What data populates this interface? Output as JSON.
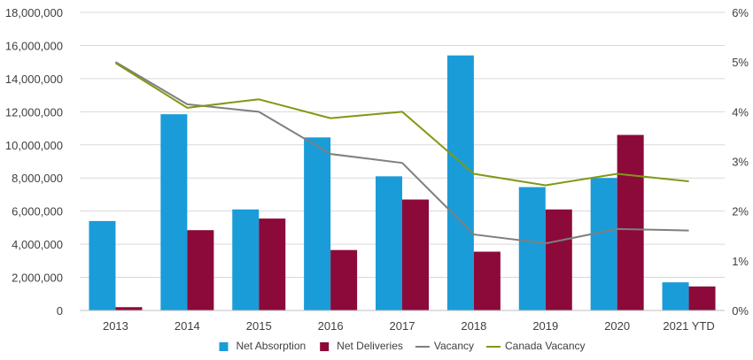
{
  "chart_data": {
    "type": "bar",
    "categories": [
      "2013",
      "2014",
      "2015",
      "2016",
      "2017",
      "2018",
      "2019",
      "2020",
      "2021 YTD"
    ],
    "series": [
      {
        "name": "Net Absorption",
        "kind": "bar",
        "axis": "left",
        "color": "#1a9cd8",
        "values": [
          5400000,
          11850000,
          6100000,
          10450000,
          8100000,
          15400000,
          7450000,
          8000000,
          1700000
        ]
      },
      {
        "name": "Net Deliveries",
        "kind": "bar",
        "axis": "left",
        "color": "#8b0a3a",
        "values": [
          200000,
          4850000,
          5550000,
          3650000,
          6700000,
          3550000,
          6100000,
          10600000,
          1450000
        ]
      },
      {
        "name": "Vacancy",
        "kind": "line",
        "axis": "right",
        "color": "#7f7f7f",
        "values": [
          5.0,
          4.15,
          4.0,
          3.15,
          2.97,
          1.53,
          1.35,
          1.64,
          1.61
        ]
      },
      {
        "name": "Canada Vacancy",
        "kind": "line",
        "axis": "right",
        "color": "#7f9a12",
        "values": [
          4.98,
          4.08,
          4.25,
          3.87,
          4.0,
          2.75,
          2.52,
          2.75,
          2.6
        ]
      }
    ],
    "y_left": {
      "min": 0,
      "max": 18000000,
      "ticks": [
        "0",
        "2,000,000",
        "4,000,000",
        "6,000,000",
        "8,000,000",
        "10,000,000",
        "12,000,000",
        "14,000,000",
        "16,000,000",
        "18,000,000"
      ]
    },
    "y_right": {
      "min": 0,
      "max": 6,
      "ticks": [
        "0%",
        "1%",
        "2%",
        "3%",
        "4%",
        "5%",
        "6%"
      ]
    },
    "grid": true,
    "legend_position": "bottom"
  }
}
